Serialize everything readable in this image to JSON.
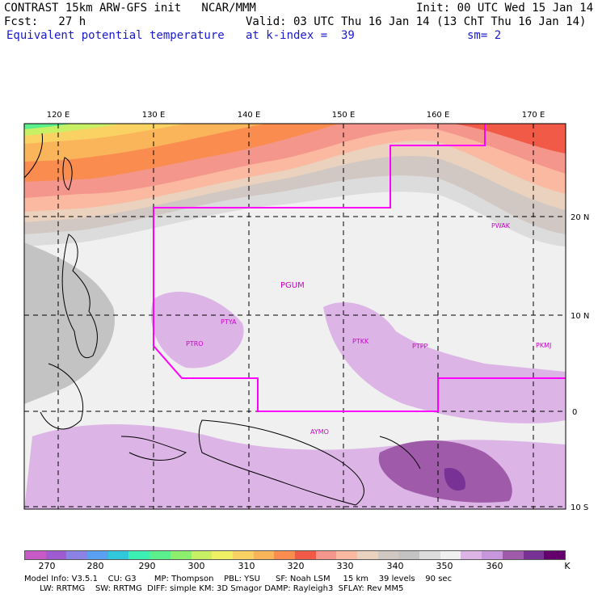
{
  "header": {
    "title": "CONTRAST 15km ARW-GFS init   NCAR/MMM",
    "init": "Init: 00 UTC Wed 15 Jan 14",
    "fcst": "Fcst:   27 h",
    "valid": "Valid: 03 UTC Thu 16 Jan 14 (13 ChT Thu 16 Jan 14)",
    "field": "Equivalent potential temperature",
    "level": "at k-index =  39",
    "sm": "sm= 2"
  },
  "map": {
    "lon_labels": [
      "120 E",
      "130 E",
      "140 E",
      "150 E",
      "160 E",
      "170 E"
    ],
    "lat_labels": [
      "20 N",
      "10 N",
      "0",
      "10 S"
    ],
    "stations": [
      "PWAK",
      "PGUM",
      "PTYA",
      "PTRO",
      "PTKK",
      "PTPP",
      "PKMJ",
      "AYMO"
    ]
  },
  "colorbar": {
    "colors": [
      "#c85ac8",
      "#a05ad2",
      "#8c82e6",
      "#5aa0f0",
      "#32c8dc",
      "#3cf0b4",
      "#5af08c",
      "#8cf06e",
      "#c8f064",
      "#f0f064",
      "#fad264",
      "#fab45a",
      "#fa8c50",
      "#f05a46",
      "#f5968c",
      "#fab9a0",
      "#ebd2be",
      "#d2c8c3",
      "#c3c3c3",
      "#dcdcdc",
      "#f0f0f0",
      "#dcb4e6",
      "#c896dc",
      "#a05aaa",
      "#783296",
      "#64006e"
    ],
    "ticks": [
      "270",
      "280",
      "290",
      "300",
      "310",
      "320",
      "330",
      "340",
      "350",
      "360"
    ],
    "unit": "K"
  },
  "footer": {
    "line1": "Model Info: V3.5.1    CU: G3       MP: Thompson    PBL: YSU      SF: Noah LSM     15 km    39 levels    90 sec",
    "line2": "      LW: RRTMG    SW: RRTMG  DIFF: simple KM: 3D Smagor DAMP: Rayleigh3  SFLAY: Rev MM5"
  }
}
